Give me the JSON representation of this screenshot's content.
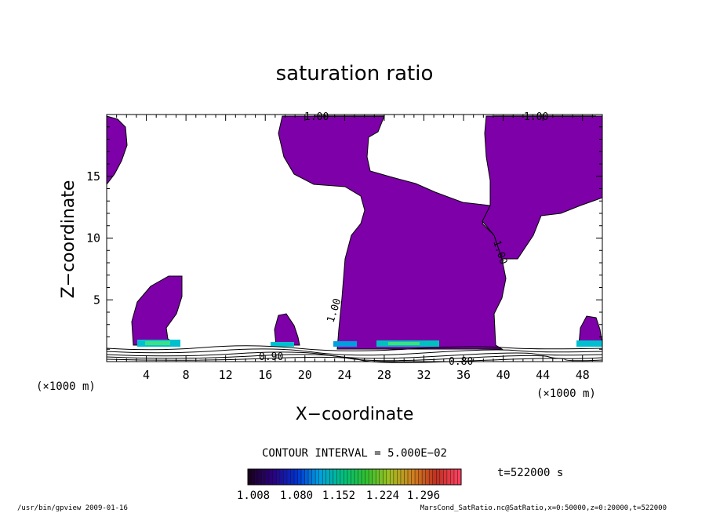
{
  "chart_data": {
    "type": "contour",
    "title": "saturation ratio",
    "xlabel": "X−coordinate",
    "ylabel": "Z−coordinate",
    "x_unit": "(×1000 m)",
    "y_unit": "(×1000 m)",
    "xlim": [
      0,
      50
    ],
    "ylim": [
      0,
      20
    ],
    "xticks": [
      4,
      8,
      12,
      16,
      20,
      24,
      28,
      32,
      36,
      40,
      44,
      48
    ],
    "yticks": [
      5,
      10,
      15
    ],
    "contour_interval": "CONTOUR INTERVAL = 5.000E−02",
    "time": "t=522000 s",
    "colorbar": {
      "tick_labels": [
        "1.008",
        "1.080",
        "1.152",
        "1.224",
        "1.296"
      ],
      "colors": [
        "#1a0020",
        "#2a0080",
        "#0030d0",
        "#00a0e0",
        "#00c080",
        "#30c030",
        "#a0c020",
        "#d08020",
        "#c03020",
        "#ff4060"
      ]
    },
    "contour_labels": [
      "1.00",
      "1.00",
      "1.00",
      "1.00",
      "0.90",
      "0.80"
    ],
    "fill_color": "#7d00a8",
    "grid": false
  },
  "footer": {
    "left": "/usr/bin/gpview   2009-01-16",
    "right": "MarsCond_SatRatio.nc@SatRatio,x=0:50000,z=0:20000,t=522000"
  }
}
